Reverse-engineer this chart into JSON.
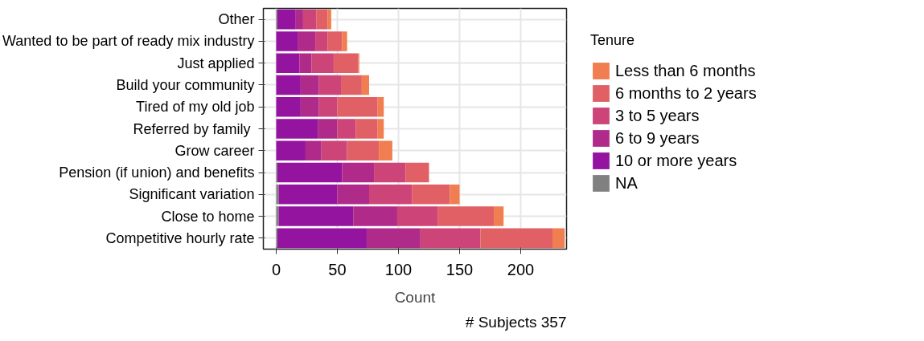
{
  "chart_data": {
    "type": "bar",
    "orientation": "horizontal",
    "stacked": true,
    "categories": [
      "Other",
      "Wanted to be part of ready mix industry",
      "Just applied",
      "Build your community",
      "Tired of my old job",
      "Referred by  family",
      "Grow career",
      "Pension (if union) and benefits",
      "Significant variation",
      "Close to home",
      "Competitive hourly rate"
    ],
    "series": [
      {
        "name": "NA",
        "color": "#808080",
        "values": [
          1,
          0,
          0,
          0,
          0,
          0,
          0,
          1,
          2,
          2,
          1
        ]
      },
      {
        "name": "10 or more years",
        "color": "#9414a0",
        "values": [
          15,
          18,
          19,
          20,
          20,
          34,
          24,
          53,
          48,
          61,
          73
        ]
      },
      {
        "name": "6 to 9 years",
        "color": "#b02a8a",
        "values": [
          6,
          14,
          10,
          15,
          15,
          16,
          13,
          26,
          26,
          36,
          44
        ]
      },
      {
        "name": "3 to 5 years",
        "color": "#cc4478",
        "values": [
          11,
          10,
          18,
          18,
          15,
          15,
          21,
          26,
          35,
          33,
          49
        ]
      },
      {
        "name": "6 months to 2 years",
        "color": "#e06066",
        "values": [
          9,
          12,
          20,
          17,
          33,
          18,
          26,
          19,
          31,
          46,
          59
        ]
      },
      {
        "name": "Less than 6 months",
        "color": "#f07e50",
        "values": [
          3,
          4,
          1,
          6,
          5,
          5,
          11,
          0,
          8,
          8,
          10
        ]
      }
    ],
    "xlabel": "Count",
    "legend_title": "Tenure",
    "legend": "right",
    "xlim": [
      -10.5,
      237.5
    ],
    "xticks": [
      0,
      50,
      100,
      150,
      200
    ],
    "grid": true,
    "annotations": [
      "# Subjects 357"
    ]
  }
}
